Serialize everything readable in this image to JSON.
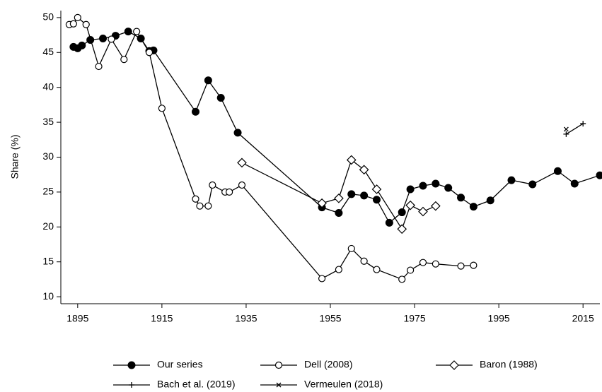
{
  "chart_data": {
    "type": "line",
    "y_label": "Share (%)",
    "xlim": [
      1891,
      2019
    ],
    "xticks": [
      1895,
      1915,
      1935,
      1955,
      1975,
      1995,
      2015
    ],
    "ylim": [
      9,
      51
    ],
    "yticks": [
      10,
      15,
      20,
      25,
      30,
      35,
      40,
      45,
      50
    ],
    "grid": false,
    "legend": "bottom",
    "series": [
      {
        "name": "Our series",
        "color": "#000000",
        "marker": "filled-circle",
        "x": [
          1894,
          1895,
          1896,
          1898,
          1901,
          1904,
          1907,
          1910,
          1912,
          1913,
          1923,
          1926,
          1929,
          1933,
          1953,
          1957,
          1960,
          1963,
          1966,
          1969,
          1972,
          1974,
          1977,
          1980,
          1983,
          1986,
          1989,
          1993,
          1998,
          2003,
          2009,
          2013,
          2019
        ],
        "values": [
          45.8,
          45.6,
          46.0,
          46.8,
          47.0,
          47.4,
          48.0,
          47.0,
          45.2,
          45.3,
          36.5,
          41.0,
          38.5,
          33.5,
          22.8,
          22.0,
          24.7,
          24.5,
          23.9,
          20.6,
          22.1,
          25.4,
          25.9,
          26.2,
          25.6,
          24.2,
          22.9,
          23.8,
          26.7,
          26.1,
          28.0,
          26.2,
          27.4
        ]
      },
      {
        "name": "Dell (2008)",
        "color": "#000000",
        "marker": "open-circle",
        "x": [
          1893,
          1894,
          1895,
          1897,
          1900,
          1903,
          1906,
          1909,
          1912,
          1915,
          1923,
          1924,
          1926,
          1927,
          1930,
          1931,
          1934,
          1953,
          1957,
          1960,
          1963,
          1966,
          1972,
          1974,
          1977,
          1980,
          1986,
          1989
        ],
        "values": [
          49.0,
          49.1,
          50.0,
          49.0,
          43.0,
          46.9,
          44.0,
          48.0,
          45.0,
          37.0,
          24.0,
          23.0,
          23.0,
          26.0,
          25.0,
          25.0,
          26.0,
          12.6,
          13.9,
          16.9,
          15.1,
          13.9,
          12.5,
          13.8,
          14.9,
          14.7,
          14.4,
          14.5
        ]
      },
      {
        "name": "Baron (1988)",
        "color": "#000000",
        "marker": "open-diamond",
        "x": [
          1934,
          1953,
          1957,
          1960,
          1963,
          1966,
          1972,
          1974,
          1977,
          1980
        ],
        "values": [
          29.2,
          23.4,
          24.1,
          29.6,
          28.2,
          25.4,
          19.7,
          23.1,
          22.2,
          23.0
        ]
      },
      {
        "name": "Bach et al. (2019)",
        "color": "#000000",
        "marker": "plus",
        "x": [
          2011,
          2015
        ],
        "values": [
          33.3,
          34.8
        ]
      },
      {
        "name": "Vermeulen (2018)",
        "color": "#000000",
        "marker": "cross",
        "x": [
          2011
        ],
        "values": [
          34.0
        ]
      }
    ]
  }
}
